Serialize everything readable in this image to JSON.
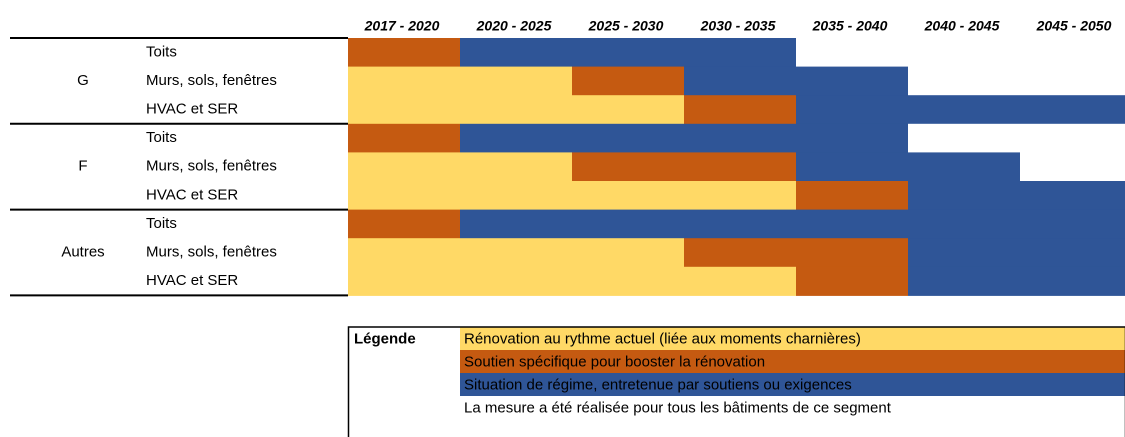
{
  "periods": [
    "2017 - 2020",
    "2020 - 2025",
    "2025 - 2030",
    "2030 - 2035",
    "2035 - 2040",
    "2040 - 2045",
    "2045 - 2050"
  ],
  "groups": [
    {
      "label": "G",
      "rows": [
        {
          "label": "Toits",
          "cells": [
            "#C55A11",
            "#2F5597",
            "#2F5597",
            "#2F5597",
            "#FFFFFF",
            "#FFFFFF",
            "#FFFFFF"
          ]
        },
        {
          "label": "Murs, sols, fenêtres",
          "cells": [
            "#FFD966",
            "#FFD966",
            "#C55A11",
            "#2F5597",
            "#2F5597",
            "#FFFFFF",
            "#FFFFFF"
          ]
        },
        {
          "label": "HVAC et SER",
          "cells": [
            "#FFD966",
            "#FFD966",
            "#FFD966",
            "#C55A11",
            "#2F5597",
            "#2F5597",
            "#2F5597"
          ]
        }
      ]
    },
    {
      "label": "F",
      "rows": [
        {
          "label": "Toits",
          "cells": [
            "#C55A11",
            "#2F5597",
            "#2F5597",
            "#2F5597",
            "#2F5597",
            "#FFFFFF",
            "#FFFFFF"
          ]
        },
        {
          "label": "Murs, sols, fenêtres",
          "cells": [
            "#FFD966",
            "#FFD966",
            "#C55A11",
            "#C55A11",
            "#2F5597",
            "#2F5597",
            "#FFFFFF"
          ]
        },
        {
          "label": "HVAC et SER",
          "cells": [
            "#FFD966",
            "#FFD966",
            "#FFD966",
            "#FFD966",
            "#C55A11",
            "#2F5597",
            "#2F5597"
          ]
        }
      ]
    },
    {
      "label": "Autres",
      "rows": [
        {
          "label": "Toits",
          "cells": [
            "#C55A11",
            "#2F5597",
            "#2F5597",
            "#2F5597",
            "#2F5597",
            "#2F5597",
            "#2F5597"
          ]
        },
        {
          "label": "Murs, sols, fenêtres",
          "cells": [
            "#FFD966",
            "#FFD966",
            "#FFD966",
            "#C55A11",
            "#C55A11",
            "#2F5597",
            "#2F5597"
          ]
        },
        {
          "label": "HVAC et SER",
          "cells": [
            "#FFD966",
            "#FFD966",
            "#FFD966",
            "#FFD966",
            "#C55A11",
            "#2F5597",
            "#2F5597"
          ]
        }
      ]
    }
  ],
  "legend": {
    "title": "Légende",
    "items": [
      {
        "label": "Rénovation au rythme actuel (liée aux moments charnières)",
        "color": "#FFD966",
        "text_color": "#000000"
      },
      {
        "label": "Soutien spécifique pour booster la rénovation",
        "color": "#C55A11",
        "text_color": "#FFFFFF"
      },
      {
        "label": "Situation de régime, entretenue par soutiens ou exigences",
        "color": "#2F5597",
        "text_color": "#FFFFFF"
      },
      {
        "label": "La mesure a été réalisée pour tous les bâtiments de ce segment",
        "color": "#FFFFFF",
        "text_color": "#000000"
      }
    ]
  }
}
